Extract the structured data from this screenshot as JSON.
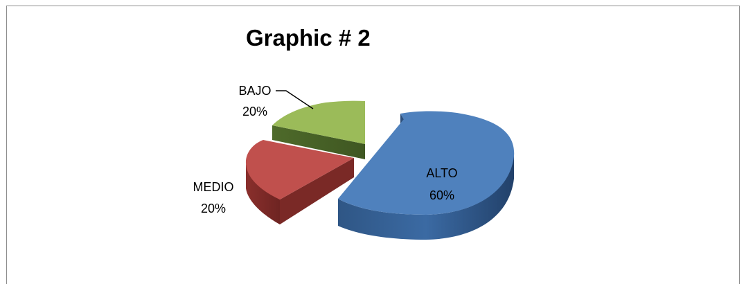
{
  "chart_data": {
    "type": "pie",
    "title": "Graphic # 2",
    "slices": [
      {
        "label": "ALTO",
        "value": 60,
        "value_label": "60%",
        "color": "#4f81bd"
      },
      {
        "label": "MEDIO",
        "value": 20,
        "value_label": "20%",
        "color": "#c0504d"
      },
      {
        "label": "BAJO",
        "value": 20,
        "value_label": "20%",
        "color": "#9bbb59"
      }
    ],
    "style": "3d-exploded",
    "legend": "none",
    "data_labels": "category-and-percent"
  }
}
